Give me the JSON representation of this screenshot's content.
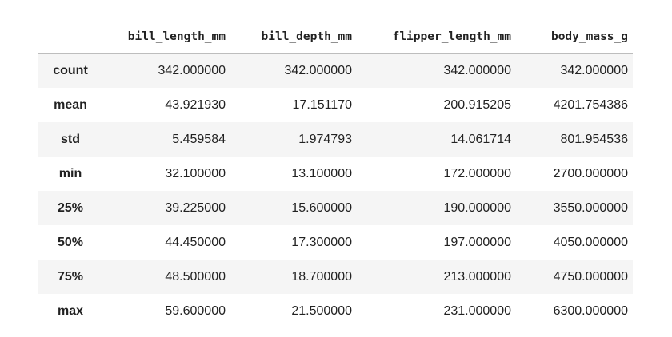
{
  "table": {
    "columns": [
      "bill_length_mm",
      "bill_depth_mm",
      "flipper_length_mm",
      "body_mass_g"
    ],
    "rows": [
      {
        "label": "count",
        "values": [
          "342.000000",
          "342.000000",
          "342.000000",
          "342.000000"
        ]
      },
      {
        "label": "mean",
        "values": [
          "43.921930",
          "17.151170",
          "200.915205",
          "4201.754386"
        ]
      },
      {
        "label": "std",
        "values": [
          "5.459584",
          "1.974793",
          "14.061714",
          "801.954536"
        ]
      },
      {
        "label": "min",
        "values": [
          "32.100000",
          "13.100000",
          "172.000000",
          "2700.000000"
        ]
      },
      {
        "label": "25%",
        "values": [
          "39.225000",
          "15.600000",
          "190.000000",
          "3550.000000"
        ]
      },
      {
        "label": "50%",
        "values": [
          "44.450000",
          "17.300000",
          "197.000000",
          "4050.000000"
        ]
      },
      {
        "label": "75%",
        "values": [
          "48.500000",
          "18.700000",
          "213.000000",
          "4750.000000"
        ]
      },
      {
        "label": "max",
        "values": [
          "59.600000",
          "21.500000",
          "231.000000",
          "6300.000000"
        ]
      }
    ]
  }
}
